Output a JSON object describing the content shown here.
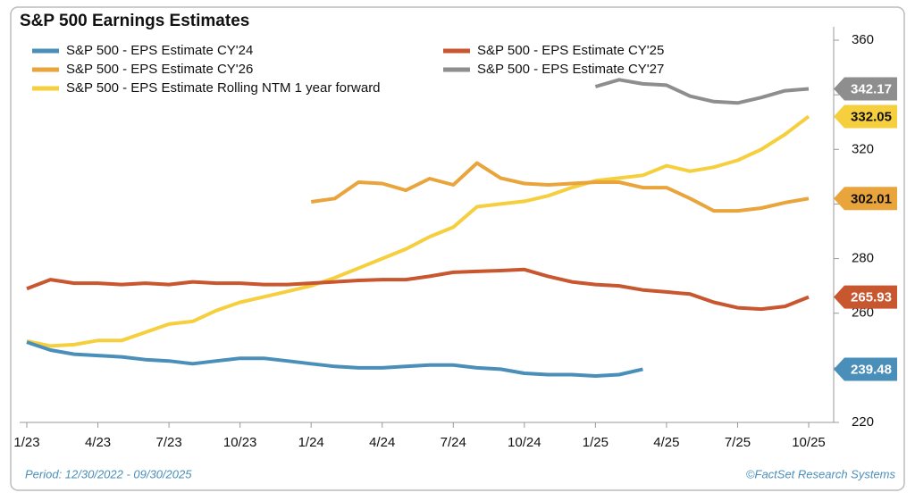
{
  "chart_data": {
    "type": "line",
    "title": "S&P 500 Earnings Estimates",
    "footer_left": "Period: 12/30/2022 - 09/30/2025",
    "footer_right": "©FactSet Research Systems",
    "x": [
      "2023-01",
      "2023-02",
      "2023-03",
      "2023-04",
      "2023-05",
      "2023-06",
      "2023-07",
      "2023-08",
      "2023-09",
      "2023-10",
      "2023-11",
      "2023-12",
      "2024-01",
      "2024-02",
      "2024-03",
      "2024-04",
      "2024-05",
      "2024-06",
      "2024-07",
      "2024-08",
      "2024-09",
      "2024-10",
      "2024-11",
      "2024-12",
      "2025-01",
      "2025-02",
      "2025-03",
      "2025-04",
      "2025-05",
      "2025-06",
      "2025-07",
      "2025-08",
      "2025-09",
      "2025-10"
    ],
    "xlim": [
      "2023-01",
      "2025-10"
    ],
    "xticks": [
      {
        "value": "2023-01",
        "label": "1/23"
      },
      {
        "value": "2023-04",
        "label": "4/23"
      },
      {
        "value": "2023-07",
        "label": "7/23"
      },
      {
        "value": "2023-10",
        "label": "10/23"
      },
      {
        "value": "2024-01",
        "label": "1/24"
      },
      {
        "value": "2024-04",
        "label": "4/24"
      },
      {
        "value": "2024-07",
        "label": "7/24"
      },
      {
        "value": "2024-10",
        "label": "10/24"
      },
      {
        "value": "2025-01",
        "label": "1/25"
      },
      {
        "value": "2025-04",
        "label": "4/25"
      },
      {
        "value": "2025-07",
        "label": "7/25"
      },
      {
        "value": "2025-10",
        "label": "10/25"
      }
    ],
    "ylim": [
      220,
      360
    ],
    "yticks": [
      220,
      240,
      260,
      280,
      300,
      320,
      340,
      360
    ],
    "grid": false,
    "series": [
      {
        "name": "S&P 500 - EPS Estimate CY'24",
        "color": "#4a8fb9",
        "values": [
          249.4,
          246.5,
          245,
          244.5,
          244,
          243,
          242.5,
          241.5,
          242.5,
          243.5,
          243.5,
          242.5,
          241.5,
          240.5,
          240,
          240,
          240.5,
          241,
          241,
          240,
          239.5,
          238,
          237.5,
          237.5,
          237,
          237.5,
          239.48,
          null,
          null,
          null,
          null,
          null,
          null,
          null
        ]
      },
      {
        "name": "S&P 500 - EPS Estimate CY'25",
        "color": "#c8562f",
        "values": [
          269,
          272.3,
          271,
          271,
          270.5,
          271,
          270.5,
          271.5,
          271,
          271,
          270.5,
          270.5,
          271,
          271.5,
          272,
          272.3,
          272.3,
          273.5,
          275,
          275.3,
          275.6,
          276,
          273.5,
          271.5,
          270.5,
          270,
          268.5,
          267.8,
          267,
          264,
          262,
          261.5,
          262.5,
          265.93
        ]
      },
      {
        "name": "S&P 500 - EPS Estimate CY'26",
        "color": "#e9a43c",
        "values": [
          null,
          null,
          null,
          null,
          null,
          null,
          null,
          null,
          null,
          null,
          null,
          null,
          300.8,
          302,
          308,
          307.5,
          305,
          309.3,
          307,
          315,
          309.5,
          307.5,
          307,
          307.5,
          308,
          308,
          306,
          306,
          302,
          297.5,
          297.5,
          298.5,
          300.5,
          302.01
        ]
      },
      {
        "name": "S&P 500 - EPS Estimate CY'27",
        "color": "#8e8e8e",
        "values": [
          null,
          null,
          null,
          null,
          null,
          null,
          null,
          null,
          null,
          null,
          null,
          null,
          null,
          null,
          null,
          null,
          null,
          null,
          null,
          null,
          null,
          null,
          null,
          null,
          343,
          345.5,
          344,
          343.5,
          339.5,
          337.5,
          337,
          339,
          341.5,
          342.17
        ]
      },
      {
        "name": "S&P 500 - EPS Estimate Rolling NTM 1 year forward",
        "color": "#f6cf3f",
        "values": [
          249.8,
          248,
          248.5,
          250,
          250,
          253,
          256,
          257,
          261,
          264,
          266,
          268,
          270,
          273,
          276.5,
          280,
          283.5,
          288,
          291.5,
          299,
          300,
          301,
          303,
          306,
          308.5,
          309.5,
          310.5,
          314,
          312,
          313.5,
          316,
          320,
          325.5,
          332.05
        ]
      }
    ]
  }
}
